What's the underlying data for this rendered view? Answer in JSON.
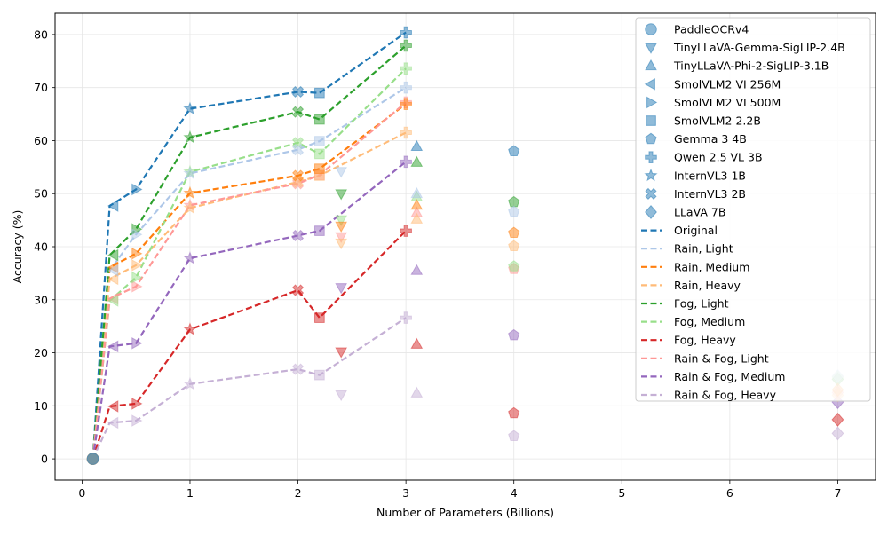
{
  "chart_data": {
    "type": "scatter",
    "xlabel": "Number of Parameters (Billions)",
    "ylabel": "Accuracy (%)",
    "xlim": [
      -0.25,
      7.35
    ],
    "ylim": [
      -4,
      84
    ],
    "xticks": [
      0,
      1,
      2,
      3,
      4,
      5,
      6,
      7
    ],
    "yticks": [
      0,
      10,
      20,
      30,
      40,
      50,
      60,
      70,
      80
    ],
    "grid": true,
    "legend_position": "top-right",
    "conditions": [
      {
        "name": "Original",
        "color": "#1f77b4"
      },
      {
        "name": "Rain, Light",
        "color": "#aec7e8"
      },
      {
        "name": "Rain, Medium",
        "color": "#ff7f0e"
      },
      {
        "name": "Rain, Heavy",
        "color": "#ffbb78"
      },
      {
        "name": "Fog, Light",
        "color": "#2ca02c"
      },
      {
        "name": "Fog, Medium",
        "color": "#98df8a"
      },
      {
        "name": "Fog, Heavy",
        "color": "#d62728"
      },
      {
        "name": "Rain & Fog, Light",
        "color": "#ff9896"
      },
      {
        "name": "Rain & Fog, Medium",
        "color": "#9467bd"
      },
      {
        "name": "Rain & Fog, Heavy",
        "color": "#c5b0d5"
      }
    ],
    "models": [
      {
        "name": "PaddleOCRv4",
        "marker": "circle",
        "params": 0.1,
        "accuracy": [
          0,
          0,
          0,
          0,
          0,
          0,
          0,
          0,
          0,
          0
        ]
      },
      {
        "name": "TinyLLaVA-Gemma-SigLIP-2.4B",
        "marker": "triangle-down",
        "params": 2.4,
        "accuracy": [
          null,
          54.2,
          43.9,
          40.7,
          50.0,
          45.1,
          20.2,
          41.9,
          32.3,
          12.1
        ]
      },
      {
        "name": "TinyLLaVA-Phi-2-SigLIP-3.1B",
        "marker": "triangle-up",
        "params": 3.1,
        "accuracy": [
          58.9,
          50.0,
          47.8,
          45.2,
          55.9,
          49.4,
          21.6,
          46.4,
          35.5,
          12.4
        ]
      },
      {
        "name": "SmolVLM2 VI 256M",
        "marker": "triangle-left",
        "params": 0.256,
        "accuracy": [
          47.7,
          35.5,
          36.1,
          33.9,
          38.4,
          29.8,
          9.9,
          30.2,
          21.2,
          6.8
        ]
      },
      {
        "name": "SmolVLM2 VI 500M",
        "marker": "triangle-right",
        "params": 0.5,
        "accuracy": [
          50.8,
          42.3,
          38.7,
          36.5,
          43.3,
          34.2,
          10.4,
          32.5,
          21.8,
          7.2
        ]
      },
      {
        "name": "SmolVLM2 2.2B",
        "marker": "square",
        "params": 2.2,
        "accuracy": [
          69.0,
          59.9,
          54.7,
          53.4,
          64.0,
          57.5,
          26.6,
          53.5,
          43.0,
          15.8
        ]
      },
      {
        "name": "Gemma 3 4B",
        "marker": "pentagon",
        "params": 4.0,
        "accuracy": [
          58.0,
          46.6,
          42.6,
          40.1,
          48.4,
          36.3,
          8.6,
          35.8,
          23.3,
          4.3
        ]
      },
      {
        "name": "Qwen 2.5 VL 3B",
        "marker": "plus",
        "params": 3.0,
        "accuracy": [
          80.4,
          70.0,
          66.9,
          61.5,
          77.9,
          73.6,
          43.0,
          67.2,
          56.0,
          26.6
        ]
      },
      {
        "name": "InternVL3 1B",
        "marker": "star",
        "params": 1.0,
        "accuracy": [
          66.0,
          53.8,
          50.1,
          47.3,
          60.6,
          54.1,
          24.4,
          47.8,
          37.8,
          14.1
        ]
      },
      {
        "name": "InternVL3 2B",
        "marker": "x",
        "params": 2.0,
        "accuracy": [
          69.2,
          58.3,
          53.4,
          52.2,
          65.4,
          59.6,
          31.8,
          51.9,
          42.1,
          16.9
        ]
      },
      {
        "name": "LLaVA 7B",
        "marker": "diamond",
        "params": 7.0,
        "accuracy": [
          null,
          15.6,
          13.0,
          12.0,
          15.0,
          15.4,
          7.4,
          12.5,
          10.7,
          4.8
        ]
      }
    ],
    "line_points": {
      "x": [
        0.1,
        0.256,
        0.5,
        1.0,
        2.0,
        2.2,
        3.0
      ],
      "series": [
        {
          "name": "Original",
          "values": [
            0,
            47.7,
            50.8,
            66.0,
            69.2,
            69.0,
            80.4
          ]
        },
        {
          "name": "Rain, Light",
          "values": [
            0,
            35.5,
            42.3,
            53.8,
            58.3,
            59.9,
            70.0
          ]
        },
        {
          "name": "Rain, Medium",
          "values": [
            0,
            36.1,
            38.7,
            50.1,
            53.4,
            54.7,
            66.9
          ]
        },
        {
          "name": "Rain, Heavy",
          "values": [
            0,
            33.9,
            36.5,
            47.3,
            52.2,
            53.4,
            61.5
          ]
        },
        {
          "name": "Fog, Light",
          "values": [
            0,
            38.4,
            43.3,
            60.6,
            65.4,
            64.0,
            77.9
          ]
        },
        {
          "name": "Fog, Medium",
          "values": [
            0,
            29.8,
            34.2,
            54.1,
            59.6,
            57.5,
            73.6
          ]
        },
        {
          "name": "Fog, Heavy",
          "values": [
            0,
            9.9,
            10.4,
            24.4,
            31.8,
            26.6,
            43.0
          ]
        },
        {
          "name": "Rain & Fog, Light",
          "values": [
            0,
            30.2,
            32.5,
            47.8,
            51.9,
            53.5,
            67.2
          ]
        },
        {
          "name": "Rain & Fog, Medium",
          "values": [
            0,
            21.2,
            21.8,
            37.8,
            42.1,
            43.0,
            56.0
          ]
        },
        {
          "name": "Rain & Fog, Heavy",
          "values": [
            0,
            6.8,
            7.2,
            14.1,
            16.9,
            15.8,
            26.6
          ]
        }
      ]
    }
  }
}
